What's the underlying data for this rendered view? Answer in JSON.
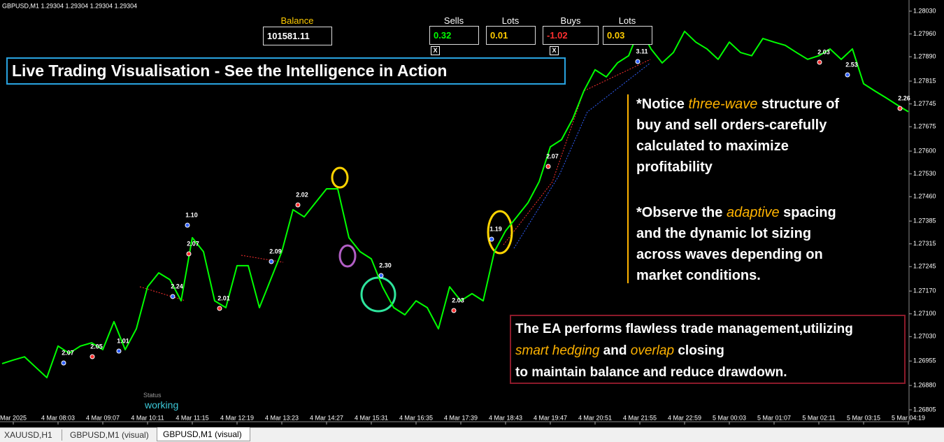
{
  "header": {
    "symbol_info": "GBPUSD,M1  1.29304 1.29304 1.29304 1.29304"
  },
  "panels": {
    "balance": {
      "label": "Balance",
      "value": "101581.11"
    },
    "sells": {
      "label": "Sells",
      "value": "0.32"
    },
    "sells_lots": {
      "label": "Lots",
      "value": "0.01"
    },
    "buys": {
      "label": "Buys",
      "value": "-1.02"
    },
    "buys_lots": {
      "label": "Lots",
      "value": "0.03"
    },
    "close_buttons": [
      "X",
      "X"
    ]
  },
  "banner": {
    "title": "Live Trading Visualisation - See the Intelligence in Action"
  },
  "notes": {
    "wave": [
      [
        "*Notice ",
        "three-wave",
        " structure of"
      ],
      [
        "buy and sell orders-carefully"
      ],
      [
        "calculated to maximize"
      ],
      [
        "profitability"
      ]
    ],
    "spacing": [
      [
        "*Observe the ",
        "adaptive",
        " spacing"
      ],
      [
        "and the dynamic lot sizing"
      ],
      [
        "across waves depending on"
      ],
      [
        "market conditions."
      ]
    ]
  },
  "summary": [
    [
      "The EA performs flawless trade management,utilizing"
    ],
    [
      "smart hedging",
      " and ",
      "overlap",
      " closing"
    ],
    [
      "to maintain balance and reduce drawdown."
    ]
  ],
  "status": {
    "label": "Status",
    "value": "working"
  },
  "tabs": [
    "XAUUSD,H1",
    "GBPUSD,M1 (visual)",
    "GBPUSD,M1 (visual)"
  ],
  "chart_data": {
    "type": "line",
    "color": "#00ff00",
    "grid": false,
    "categories": [
      null,
      "Mar 2025",
      null,
      null,
      null,
      "4 Mar 08:03",
      null,
      null,
      null,
      "4 Mar 09:07",
      null,
      null,
      null,
      "4 Mar 10:11",
      null,
      null,
      null,
      "4 Mar 11:15",
      null,
      null,
      null,
      "4 Mar 12:19",
      null,
      null,
      null,
      "4 Mar 13:23",
      null,
      null,
      null,
      "4 Mar 14:27",
      null,
      null,
      null,
      "4 Mar 15:31",
      null,
      null,
      null,
      "4 Mar 16:35",
      null,
      null,
      null,
      "4 Mar 17:39",
      null,
      null,
      null,
      "4 Mar 18:43",
      null,
      null,
      null,
      "4 Mar 19:47",
      null,
      null,
      null,
      "4 Mar 20:51",
      null,
      null,
      null,
      "4 Mar 21:55",
      null,
      null,
      null,
      "4 Mar 22:59",
      null,
      null,
      null,
      "5 Mar 00:03",
      null,
      null,
      null,
      "5 Mar 01:07",
      null,
      null,
      null,
      "5 Mar 02:11",
      null,
      null,
      null,
      "5 Mar 03:15",
      null,
      null,
      null,
      "5 Mar 04:19"
    ],
    "values": [
      1.26947,
      1.26958,
      1.26968,
      1.26936,
      1.26904,
      1.27001,
      1.26979,
      1.27001,
      1.27011,
      1.2699,
      1.27076,
      1.2699,
      1.27054,
      1.27183,
      1.27226,
      1.27205,
      1.2714,
      1.27334,
      1.27291,
      1.2714,
      1.27119,
      1.27248,
      1.27248,
      1.27119,
      1.27205,
      1.27291,
      1.2742,
      1.27398,
      1.27441,
      1.27484,
      1.27484,
      1.27334,
      1.27291,
      1.27269,
      1.27183,
      1.27119,
      1.27097,
      1.2714,
      1.27119,
      1.27054,
      1.27183,
      1.2714,
      1.27162,
      1.2714,
      1.27291,
      1.27355,
      1.27398,
      1.27441,
      1.27506,
      1.27613,
      1.27635,
      1.27699,
      1.27785,
      1.2785,
      1.27828,
      1.27871,
      1.27893,
      1.27978,
      1.27914,
      1.27871,
      1.27903,
      1.27968,
      1.27935,
      1.27914,
      1.27882,
      1.27935,
      1.27903,
      1.27893,
      1.27946,
      1.27935,
      1.27925,
      1.27903,
      1.27882,
      1.27893,
      1.27914,
      1.27882,
      1.27914,
      1.27807,
      1.27785,
      1.27764,
      1.27742,
      1.27721
    ],
    "ylim": [
      1.2679,
      1.2806
    ],
    "yticks": [
      {
        "value": 1.2803,
        "label": "1.28030"
      },
      {
        "value": 1.2796,
        "label": "1.27960"
      },
      {
        "value": 1.2789,
        "label": "1.27890"
      },
      {
        "value": 1.27815,
        "label": "1.27815"
      },
      {
        "value": 1.27745,
        "label": "1.27745"
      },
      {
        "value": 1.27675,
        "label": "1.27675"
      },
      {
        "value": 1.276,
        "label": "1.27600"
      },
      {
        "value": 1.2753,
        "label": "1.27530"
      },
      {
        "value": 1.2746,
        "label": "1.27460"
      },
      {
        "value": 1.27385,
        "label": "1.27385"
      },
      {
        "value": 1.27315,
        "label": "1.27315"
      },
      {
        "value": 1.27245,
        "label": "1.27245"
      },
      {
        "value": 1.2717,
        "label": "1.27170"
      },
      {
        "value": 1.271,
        "label": "1.27100"
      },
      {
        "value": 1.2703,
        "label": "1.27030"
      },
      {
        "value": 1.26955,
        "label": "1.26955"
      },
      {
        "value": 1.2688,
        "label": "1.26880"
      },
      {
        "value": 1.26805,
        "label": "1.26805"
      }
    ],
    "annotations": [
      "1.10",
      "2.07",
      "2.24",
      "2.01",
      "2.09",
      "2.02",
      "2.30",
      "2.03",
      "1.19",
      "2.07",
      "3.11",
      "2.03",
      "2.53",
      "2.26",
      "2.07",
      "2.05",
      "1.01"
    ]
  }
}
